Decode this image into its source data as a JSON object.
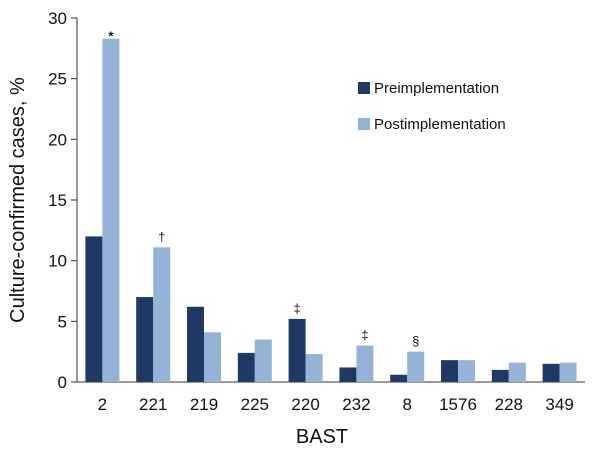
{
  "chart_data": {
    "type": "bar",
    "xlabel": "BAST",
    "ylabel": "Culture-confirmed cases, %",
    "ylim": [
      0,
      30
    ],
    "yticks": [
      0,
      5,
      10,
      15,
      20,
      25,
      30
    ],
    "grid": false,
    "legend_position": "right",
    "categories": [
      "2",
      "221",
      "219",
      "225",
      "220",
      "232",
      "8",
      "1576",
      "228",
      "349"
    ],
    "series": [
      {
        "name": "Preimplementation",
        "color": "#1f3864",
        "values": [
          12.0,
          7.0,
          6.2,
          2.4,
          5.2,
          1.2,
          0.6,
          1.8,
          1.0,
          1.5
        ]
      },
      {
        "name": "Postimplementation",
        "color": "#95b3d7",
        "values": [
          28.3,
          11.1,
          4.1,
          3.5,
          2.3,
          3.0,
          2.5,
          1.8,
          1.6,
          1.6
        ]
      }
    ],
    "annotations": [
      {
        "category": "2",
        "series": 1,
        "text": "*"
      },
      {
        "category": "221",
        "series": 1,
        "text": "†"
      },
      {
        "category": "220",
        "series": 0,
        "text": "‡"
      },
      {
        "category": "232",
        "series": 1,
        "text": "‡"
      },
      {
        "category": "8",
        "series": 1,
        "text": "§"
      }
    ]
  }
}
